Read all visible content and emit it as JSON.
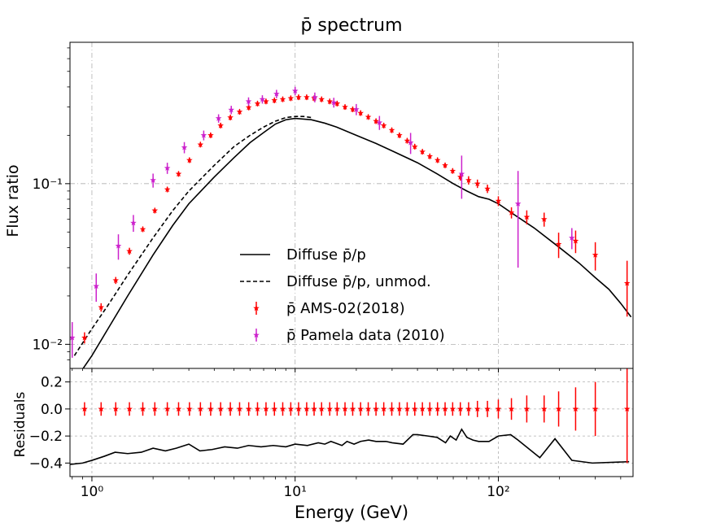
{
  "chart_data": {
    "type": "scatter",
    "title": "p̄ spectrum",
    "xlabel": "Energy (GeV)",
    "ylabel_top": "Flux ratio",
    "ylabel_bottom": "Residuals",
    "xscale": "log",
    "xlim": [
      0.78,
      460
    ],
    "top_yscale": "log",
    "top_ylim_log10": [
      -2.15,
      -0.12
    ],
    "bottom_ylim": [
      -0.5,
      0.3
    ],
    "xticks": [
      {
        "value": 1,
        "label": "10⁰"
      },
      {
        "value": 10,
        "label": "10¹"
      },
      {
        "value": 100,
        "label": "10²"
      }
    ],
    "top_yticks": [
      {
        "value": 0.01,
        "label": "10⁻²"
      },
      {
        "value": 0.1,
        "label": "10⁻¹"
      }
    ],
    "bottom_yticks": [
      {
        "value": 0.2,
        "label": "0.2"
      },
      {
        "value": 0.0,
        "label": "0.0"
      },
      {
        "value": -0.2,
        "label": "−0.2"
      },
      {
        "value": -0.4,
        "label": "−0.4"
      }
    ],
    "grid": true,
    "legend_position": "center-bottom",
    "legend": [
      {
        "label": "Diffuse p̄/p",
        "style": "solid-line"
      },
      {
        "label": "Diffuse p̄/p, unmod.",
        "style": "dashed-line"
      },
      {
        "label": "p̄ AMS-02(2018)",
        "style": "red-star-errorbar"
      },
      {
        "label": "p̄ Pamela data (2010)",
        "style": "magenta-star-errorbar"
      }
    ],
    "colors": {
      "ams": "#ff0000",
      "pamela": "#cc22cc",
      "model": "#000000",
      "grid": "#b0b0b0"
    },
    "series": [
      {
        "name": "Diffuse p̄/p",
        "style": "solid",
        "x": [
          0.85,
          1.0,
          1.2,
          1.5,
          2.0,
          2.5,
          3.0,
          4.0,
          5.0,
          6.0,
          7.0,
          8.0,
          9.0,
          10.0,
          12.0,
          14.0,
          16.0,
          20.0,
          25.0,
          30.0,
          40.0,
          50.0,
          60.0,
          70.0,
          80.0,
          90.0,
          100.0,
          120.0,
          150.0,
          200.0,
          250.0,
          300.0,
          350.0,
          400.0,
          450.0
        ],
        "y": [
          0.0063,
          0.0085,
          0.0125,
          0.02,
          0.036,
          0.055,
          0.075,
          0.11,
          0.145,
          0.18,
          0.208,
          0.235,
          0.25,
          0.255,
          0.25,
          0.238,
          0.225,
          0.2,
          0.178,
          0.16,
          0.135,
          0.115,
          0.1,
          0.09,
          0.083,
          0.08,
          0.075,
          0.064,
          0.053,
          0.04,
          0.032,
          0.026,
          0.022,
          0.018,
          0.0148
        ]
      },
      {
        "name": "Diffuse p̄/p, unmod.",
        "style": "dashed",
        "x": [
          0.82,
          1.0,
          1.2,
          1.5,
          2.0,
          2.5,
          3.0,
          4.0,
          5.0,
          6.0,
          7.0,
          8.0,
          9.0,
          10.0,
          11.0,
          12.0
        ],
        "y": [
          0.0085,
          0.0125,
          0.0175,
          0.027,
          0.046,
          0.068,
          0.09,
          0.13,
          0.17,
          0.2,
          0.225,
          0.245,
          0.258,
          0.262,
          0.262,
          0.258
        ]
      },
      {
        "name": "p̄ AMS-02(2018)",
        "x": [
          0.92,
          1.11,
          1.31,
          1.53,
          1.78,
          2.04,
          2.35,
          2.67,
          3.02,
          3.42,
          3.84,
          4.3,
          4.8,
          5.33,
          5.91,
          6.53,
          7.19,
          7.91,
          8.69,
          9.52,
          10.4,
          11.4,
          12.4,
          13.5,
          14.8,
          16.1,
          17.6,
          19.2,
          21.0,
          22.9,
          25.0,
          27.3,
          29.9,
          32.6,
          35.6,
          38.8,
          42.3,
          46.0,
          50.2,
          54.7,
          59.6,
          65.0,
          71.4,
          78.9,
          88.4,
          100.0,
          116.0,
          138.0,
          168.0,
          198.0,
          240.0,
          300.0,
          430.0
        ],
        "y": [
          0.011,
          0.017,
          0.025,
          0.038,
          0.052,
          0.068,
          0.092,
          0.115,
          0.14,
          0.175,
          0.2,
          0.23,
          0.258,
          0.28,
          0.298,
          0.315,
          0.325,
          0.33,
          0.335,
          0.34,
          0.345,
          0.345,
          0.34,
          0.335,
          0.325,
          0.315,
          0.3,
          0.29,
          0.275,
          0.26,
          0.245,
          0.23,
          0.215,
          0.2,
          0.185,
          0.17,
          0.158,
          0.148,
          0.14,
          0.13,
          0.12,
          0.11,
          0.105,
          0.1,
          0.093,
          0.078,
          0.066,
          0.062,
          0.06,
          0.042,
          0.044,
          0.036,
          0.024
        ],
        "err_rel": [
          0.08,
          0.06,
          0.05,
          0.05,
          0.04,
          0.04,
          0.04,
          0.04,
          0.04,
          0.04,
          0.04,
          0.04,
          0.04,
          0.04,
          0.04,
          0.04,
          0.04,
          0.04,
          0.04,
          0.04,
          0.04,
          0.04,
          0.04,
          0.04,
          0.04,
          0.04,
          0.04,
          0.04,
          0.04,
          0.04,
          0.04,
          0.04,
          0.04,
          0.04,
          0.04,
          0.04,
          0.04,
          0.04,
          0.04,
          0.04,
          0.04,
          0.05,
          0.06,
          0.06,
          0.06,
          0.07,
          0.08,
          0.1,
          0.1,
          0.18,
          0.16,
          0.2,
          0.38
        ]
      },
      {
        "name": "p̄ Pamela data (2010)",
        "x": [
          0.8,
          1.05,
          1.35,
          1.6,
          2.0,
          2.35,
          2.85,
          3.55,
          4.2,
          4.85,
          5.9,
          6.9,
          8.1,
          10.0,
          12.5,
          15.5,
          20.0,
          26.0,
          37.0,
          66.0,
          125.0,
          230.0
        ],
        "y": [
          0.011,
          0.023,
          0.041,
          0.057,
          0.105,
          0.125,
          0.168,
          0.2,
          0.255,
          0.288,
          0.325,
          0.335,
          0.362,
          0.378,
          0.345,
          0.32,
          0.29,
          0.24,
          0.18,
          0.115,
          0.075,
          0.046
        ],
        "err_rel": [
          0.25,
          0.2,
          0.18,
          0.12,
          0.1,
          0.08,
          0.08,
          0.07,
          0.06,
          0.06,
          0.06,
          0.06,
          0.06,
          0.06,
          0.07,
          0.07,
          0.08,
          0.1,
          0.15,
          0.3,
          0.6,
          0.15
        ]
      }
    ],
    "residuals": {
      "ams_points": {
        "values": [
          0.0,
          0.0,
          0.0,
          0.0,
          0.0,
          0.0,
          0.0,
          0.0,
          0.0,
          0.0,
          0.0,
          0.0,
          0.0,
          0.0,
          0.0,
          0.0,
          0.0,
          0.0,
          0.0,
          0.0,
          0.0,
          0.0,
          0.0,
          0.0,
          0.0,
          0.0,
          0.0,
          0.0,
          0.0,
          0.0,
          0.0,
          0.0,
          0.0,
          0.0,
          0.0,
          0.0,
          0.0,
          0.0,
          0.0,
          0.0,
          0.0,
          0.0,
          0.0,
          0.0,
          0.0,
          0.0,
          0.0,
          0.0,
          0.0,
          0.0,
          0.0,
          0.0,
          0.0
        ],
        "err": [
          0.05,
          0.05,
          0.05,
          0.05,
          0.05,
          0.05,
          0.05,
          0.05,
          0.05,
          0.05,
          0.05,
          0.05,
          0.05,
          0.05,
          0.05,
          0.05,
          0.05,
          0.05,
          0.05,
          0.05,
          0.05,
          0.05,
          0.05,
          0.05,
          0.05,
          0.05,
          0.05,
          0.05,
          0.05,
          0.05,
          0.05,
          0.05,
          0.05,
          0.05,
          0.05,
          0.05,
          0.05,
          0.05,
          0.05,
          0.05,
          0.05,
          0.05,
          0.05,
          0.06,
          0.06,
          0.07,
          0.08,
          0.1,
          0.1,
          0.13,
          0.16,
          0.2,
          0.4
        ]
      },
      "model_line": {
        "x": [
          0.78,
          0.9,
          1.0,
          1.15,
          1.3,
          1.5,
          1.75,
          2.0,
          2.3,
          2.6,
          3.0,
          3.4,
          3.9,
          4.5,
          5.2,
          5.9,
          6.8,
          7.8,
          9.0,
          10.0,
          11.5,
          13.0,
          14.0,
          15.0,
          17.0,
          18.0,
          19.5,
          21.0,
          23.0,
          25.0,
          28.0,
          30.0,
          34.0,
          38.0,
          40.0,
          45.0,
          50.0,
          55.0,
          58.0,
          62.0,
          66.0,
          70.0,
          75.0,
          80.0,
          90.0,
          100.0,
          115.0,
          125.0,
          160.0,
          190.0,
          230.0,
          290.0,
          440.0
        ],
        "y": [
          -0.41,
          -0.4,
          -0.38,
          -0.35,
          -0.32,
          -0.33,
          -0.32,
          -0.29,
          -0.31,
          -0.29,
          -0.26,
          -0.31,
          -0.3,
          -0.28,
          -0.29,
          -0.27,
          -0.28,
          -0.27,
          -0.28,
          -0.26,
          -0.27,
          -0.25,
          -0.26,
          -0.24,
          -0.27,
          -0.24,
          -0.26,
          -0.24,
          -0.23,
          -0.24,
          -0.24,
          -0.25,
          -0.26,
          -0.19,
          -0.19,
          -0.2,
          -0.21,
          -0.25,
          -0.2,
          -0.23,
          -0.15,
          -0.21,
          -0.23,
          -0.24,
          -0.24,
          -0.2,
          -0.19,
          -0.23,
          -0.36,
          -0.22,
          -0.38,
          -0.4,
          -0.39
        ]
      }
    }
  }
}
